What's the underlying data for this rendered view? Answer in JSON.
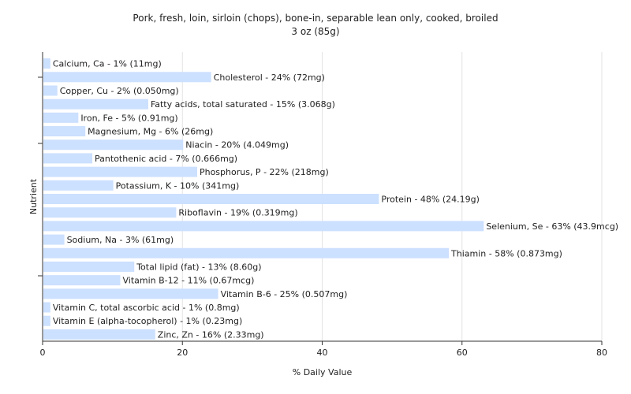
{
  "chart_data": {
    "type": "bar",
    "orientation": "horizontal",
    "title": "Pork, fresh, loin, sirloin (chops), bone-in, separable lean only, cooked, broiled",
    "subtitle": "3 oz (85g)",
    "xlabel": "% Daily Value",
    "ylabel": "Nutrient",
    "xlim": [
      0,
      80
    ],
    "xticks": [
      0,
      20,
      40,
      60,
      80
    ],
    "grid": true,
    "bar_color": "#cce0ff",
    "categories": [
      "Calcium, Ca",
      "Cholesterol",
      "Copper, Cu",
      "Fatty acids, total saturated",
      "Iron, Fe",
      "Magnesium, Mg",
      "Niacin",
      "Pantothenic acid",
      "Phosphorus, P",
      "Potassium, K",
      "Protein",
      "Riboflavin",
      "Selenium, Se",
      "Sodium, Na",
      "Thiamin",
      "Total lipid (fat)",
      "Vitamin B-12",
      "Vitamin B-6",
      "Vitamin C, total ascorbic acid",
      "Vitamin E (alpha-tocopherol)",
      "Zinc, Zn"
    ],
    "values": [
      1,
      24,
      2,
      15,
      5,
      6,
      20,
      7,
      22,
      10,
      48,
      19,
      63,
      3,
      58,
      13,
      11,
      25,
      1,
      1,
      16
    ],
    "labels": [
      "Calcium, Ca - 1% (11mg)",
      "Cholesterol - 24% (72mg)",
      "Copper, Cu - 2% (0.050mg)",
      "Fatty acids, total saturated - 15% (3.068g)",
      "Iron, Fe - 5% (0.91mg)",
      "Magnesium, Mg - 6% (26mg)",
      "Niacin - 20% (4.049mg)",
      "Pantothenic acid - 7% (0.666mg)",
      "Phosphorus, P - 22% (218mg)",
      "Potassium, K - 10% (341mg)",
      "Protein - 48% (24.19g)",
      "Riboflavin - 19% (0.319mg)",
      "Selenium, Se - 63% (43.9mcg)",
      "Sodium, Na - 3% (61mg)",
      "Thiamin - 58% (0.873mg)",
      "Total lipid (fat) - 13% (8.60g)",
      "Vitamin B-12 - 11% (0.67mcg)",
      "Vitamin B-6 - 25% (0.507mg)",
      "Vitamin C, total ascorbic acid - 1% (0.8mg)",
      "Vitamin E (alpha-tocopherol) - 1% (0.23mg)",
      "Zinc, Zn - 16% (2.33mg)"
    ]
  }
}
